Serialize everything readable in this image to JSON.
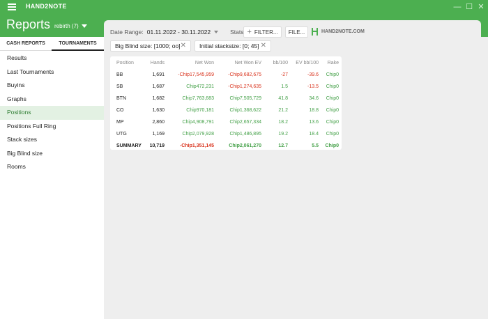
{
  "app": {
    "title": "HAND2NOTE",
    "window_controls": {
      "minimize": "—",
      "maximize": "☐",
      "close": "✕"
    }
  },
  "header": {
    "title": "Reports",
    "profile": "rebirth (7)"
  },
  "sidebar": {
    "tabs": [
      {
        "label": "CASH REPORTS",
        "active": false
      },
      {
        "label": "TOURNAMENTS",
        "active": true
      }
    ],
    "items": [
      {
        "label": "Results",
        "active": false
      },
      {
        "label": "Last Tournaments",
        "active": false
      },
      {
        "label": "Buyins",
        "active": false
      },
      {
        "label": "Graphs",
        "active": false
      },
      {
        "label": "Positions",
        "active": true
      },
      {
        "label": "Positions Full Ring",
        "active": false
      },
      {
        "label": "Stack sizes",
        "active": false
      },
      {
        "label": "Big Blind size",
        "active": false
      },
      {
        "label": "Rooms",
        "active": false
      }
    ]
  },
  "filters": {
    "date_label": "Date Range:",
    "date_value": "01.11.2022 - 30.11.2022",
    "stats_label": "Stats:",
    "filter_button": "FILTER...",
    "file_button": "FILE...",
    "logo_text": "HAND2NOTE.COM",
    "chips": [
      {
        "label": "Big Blind size: [1000; oo]"
      },
      {
        "label": "Initial stacksize: [0; 45]"
      }
    ]
  },
  "table": {
    "columns": [
      "Position",
      "Hands",
      "Net Won",
      "Net Won  EV",
      "bb/100",
      "EV bb/100",
      "Rake"
    ],
    "rows": [
      {
        "position": "BB",
        "hands": "1,691",
        "net_won": "-Chip17,545,959",
        "net_won_ev": "-Chip9,682,675",
        "bb100": "-27",
        "ev_bb100": "-39.6",
        "rake": "Chip0"
      },
      {
        "position": "SB",
        "hands": "1,687",
        "net_won": "Chip472,231",
        "net_won_ev": "-Chip1,274,635",
        "bb100": "1.5",
        "ev_bb100": "-13.5",
        "rake": "Chip0"
      },
      {
        "position": "BTN",
        "hands": "1,682",
        "net_won": "Chip7,763,683",
        "net_won_ev": "Chip7,505,729",
        "bb100": "41.8",
        "ev_bb100": "34.6",
        "rake": "Chip0"
      },
      {
        "position": "CO",
        "hands": "1,630",
        "net_won": "Chip970,181",
        "net_won_ev": "Chip1,368,622",
        "bb100": "21.2",
        "ev_bb100": "18.8",
        "rake": "Chip0"
      },
      {
        "position": "MP",
        "hands": "2,860",
        "net_won": "Chip4,908,791",
        "net_won_ev": "Chip2,657,334",
        "bb100": "18.2",
        "ev_bb100": "13.6",
        "rake": "Chip0"
      },
      {
        "position": "UTG",
        "hands": "1,169",
        "net_won": "Chip2,079,928",
        "net_won_ev": "Chip1,486,895",
        "bb100": "19.2",
        "ev_bb100": "18.4",
        "rake": "Chip0"
      }
    ],
    "summary": {
      "position": "SUMMARY",
      "hands": "10,719",
      "net_won": "-Chip1,351,145",
      "net_won_ev": "Chip2,061,270",
      "bb100": "12.7",
      "ev_bb100": "5.5",
      "rake": "Chip0"
    }
  },
  "colors": {
    "brand_green": "#4caf50",
    "positive": "#43a047",
    "negative": "#d9341e"
  }
}
